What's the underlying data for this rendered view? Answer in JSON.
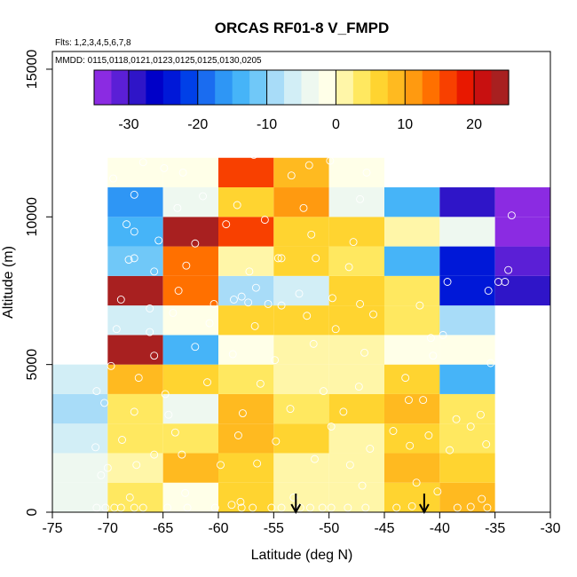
{
  "chart_data": {
    "type": "heatmap",
    "title": "ORCAS RF01-8 V_FMPD",
    "flights_text": "Flts: 1,2,3,4,5,6,7,8",
    "dates_text": "MMDD: 0115,0118,0121,0123,0125,0125,0130,0205",
    "xlabel": "Latitude (deg N)",
    "ylabel": "Altitude (m)",
    "xlim": [
      -75,
      -30
    ],
    "ylim": [
      0,
      16000
    ],
    "x_ticks": [
      -75,
      -70,
      -65,
      -60,
      -55,
      -50,
      -45,
      -40,
      -35,
      -30
    ],
    "x_tick_labels": [
      "-75",
      "-70",
      "-65",
      "-60",
      "-55",
      "-50",
      "-45",
      "-40",
      "-35",
      "-30"
    ],
    "y_ticks": [
      0,
      5000,
      10000,
      15000
    ],
    "y_tick_labels": [
      "0",
      "5000",
      "10000",
      "15000"
    ],
    "colorbar": {
      "range": [
        -35,
        25
      ],
      "tick_values": [
        -30,
        -20,
        -10,
        0,
        10,
        20
      ],
      "tick_labels": [
        "-30",
        "-20",
        "-10",
        "0",
        "10",
        "20"
      ],
      "colors": [
        "#8B2BE2",
        "#5B1FD6",
        "#2F15C8",
        "#0000C8",
        "#0018D8",
        "#0040E8",
        "#1A6CF0",
        "#2E96F5",
        "#46B4F8",
        "#70C8F8",
        "#A8DCF8",
        "#D2EEF6",
        "#EEF8F0",
        "#FFFFE8",
        "#FFF6A8",
        "#FFE860",
        "#FFD430",
        "#FFBA20",
        "#FF9A10",
        "#FF7000",
        "#F84000",
        "#E81800",
        "#C81010",
        "#A82020"
      ]
    },
    "bin_width_deg": 5,
    "bin_height_m": 1000,
    "cells": [
      {
        "lat": -75,
        "alt": 0,
        "value": -4
      },
      {
        "lat": -75,
        "alt": 1000,
        "value": -5
      },
      {
        "lat": -75,
        "alt": 2000,
        "value": -7
      },
      {
        "lat": -75,
        "alt": 3000,
        "value": -8
      },
      {
        "lat": -75,
        "alt": 4000,
        "value": -6
      },
      {
        "lat": -70,
        "alt": 0,
        "value": 3
      },
      {
        "lat": -70,
        "alt": 1000,
        "value": 2
      },
      {
        "lat": -70,
        "alt": 2000,
        "value": 4
      },
      {
        "lat": -70,
        "alt": 3000,
        "value": 3
      },
      {
        "lat": -70,
        "alt": 4000,
        "value": 9
      },
      {
        "lat": -70,
        "alt": 5000,
        "value": 23
      },
      {
        "lat": -70,
        "alt": 6000,
        "value": -6
      },
      {
        "lat": -70,
        "alt": 7000,
        "value": 26
      },
      {
        "lat": -70,
        "alt": 8000,
        "value": -12
      },
      {
        "lat": -70,
        "alt": 9000,
        "value": -13
      },
      {
        "lat": -70,
        "alt": 10000,
        "value": -16
      },
      {
        "lat": -70,
        "alt": 11000,
        "value": -1
      },
      {
        "lat": -65,
        "alt": 0,
        "value": -1
      },
      {
        "lat": -65,
        "alt": 1000,
        "value": 9
      },
      {
        "lat": -65,
        "alt": 2000,
        "value": 4
      },
      {
        "lat": -65,
        "alt": 3000,
        "value": -5
      },
      {
        "lat": -65,
        "alt": 4000,
        "value": 5
      },
      {
        "lat": -65,
        "alt": 5000,
        "value": -15
      },
      {
        "lat": -65,
        "alt": 6000,
        "value": -1
      },
      {
        "lat": -65,
        "alt": 7000,
        "value": 13
      },
      {
        "lat": -65,
        "alt": 8000,
        "value": 14
      },
      {
        "lat": -65,
        "alt": 9000,
        "value": 24
      },
      {
        "lat": -65,
        "alt": 10000,
        "value": -4
      },
      {
        "lat": -65,
        "alt": 11000,
        "value": -1
      },
      {
        "lat": -60,
        "alt": 0,
        "value": 5
      },
      {
        "lat": -60,
        "alt": 1000,
        "value": 7
      },
      {
        "lat": -60,
        "alt": 2000,
        "value": 9
      },
      {
        "lat": -60,
        "alt": 3000,
        "value": 9
      },
      {
        "lat": -60,
        "alt": 4000,
        "value": 3
      },
      {
        "lat": -60,
        "alt": 5000,
        "value": -1
      },
      {
        "lat": -60,
        "alt": 6000,
        "value": 6
      },
      {
        "lat": -60,
        "alt": 7000,
        "value": -10
      },
      {
        "lat": -60,
        "alt": 8000,
        "value": 2
      },
      {
        "lat": -60,
        "alt": 9000,
        "value": 17
      },
      {
        "lat": -60,
        "alt": 10000,
        "value": 6
      },
      {
        "lat": -60,
        "alt": 11000,
        "value": 17
      },
      {
        "lat": -55,
        "alt": 0,
        "value": 2
      },
      {
        "lat": -55,
        "alt": 1000,
        "value": 2
      },
      {
        "lat": -55,
        "alt": 2000,
        "value": 6
      },
      {
        "lat": -55,
        "alt": 3000,
        "value": 4
      },
      {
        "lat": -55,
        "alt": 4000,
        "value": 1
      },
      {
        "lat": -55,
        "alt": 5000,
        "value": 2
      },
      {
        "lat": -55,
        "alt": 6000,
        "value": 6
      },
      {
        "lat": -55,
        "alt": 7000,
        "value": -7
      },
      {
        "lat": -55,
        "alt": 8000,
        "value": 5
      },
      {
        "lat": -55,
        "alt": 9000,
        "value": 7
      },
      {
        "lat": -55,
        "alt": 10000,
        "value": 11
      },
      {
        "lat": -55,
        "alt": 11000,
        "value": 8
      },
      {
        "lat": -50,
        "alt": 0,
        "value": 1
      },
      {
        "lat": -50,
        "alt": 1000,
        "value": 2
      },
      {
        "lat": -50,
        "alt": 2000,
        "value": 1
      },
      {
        "lat": -50,
        "alt": 3000,
        "value": 7
      },
      {
        "lat": -50,
        "alt": 4000,
        "value": 1
      },
      {
        "lat": -50,
        "alt": 5000,
        "value": 1
      },
      {
        "lat": -50,
        "alt": 6000,
        "value": 5
      },
      {
        "lat": -50,
        "alt": 7000,
        "value": 7
      },
      {
        "lat": -50,
        "alt": 8000,
        "value": 4
      },
      {
        "lat": -50,
        "alt": 9000,
        "value": 7
      },
      {
        "lat": -50,
        "alt": 10000,
        "value": -5
      },
      {
        "lat": -50,
        "alt": 11000,
        "value": -1
      },
      {
        "lat": -45,
        "alt": 0,
        "value": 7
      },
      {
        "lat": -45,
        "alt": 1000,
        "value": 8
      },
      {
        "lat": -45,
        "alt": 2000,
        "value": 7
      },
      {
        "lat": -45,
        "alt": 3000,
        "value": 8
      },
      {
        "lat": -45,
        "alt": 4000,
        "value": 7
      },
      {
        "lat": -45,
        "alt": 5000,
        "value": -1
      },
      {
        "lat": -45,
        "alt": 6000,
        "value": 4
      },
      {
        "lat": -45,
        "alt": 7000,
        "value": 3
      },
      {
        "lat": -45,
        "alt": 8000,
        "value": -13
      },
      {
        "lat": -45,
        "alt": 9000,
        "value": 2
      },
      {
        "lat": -45,
        "alt": 10000,
        "value": -15
      },
      {
        "lat": -40,
        "alt": 0,
        "value": 9
      },
      {
        "lat": -40,
        "alt": 1000,
        "value": 6
      },
      {
        "lat": -40,
        "alt": 2000,
        "value": 3
      },
      {
        "lat": -40,
        "alt": 3000,
        "value": 4
      },
      {
        "lat": -40,
        "alt": 4000,
        "value": -13
      },
      {
        "lat": -40,
        "alt": 5000,
        "value": -2
      },
      {
        "lat": -40,
        "alt": 6000,
        "value": -8
      },
      {
        "lat": -40,
        "alt": 7000,
        "value": -24
      },
      {
        "lat": -40,
        "alt": 8000,
        "value": -24
      },
      {
        "lat": -40,
        "alt": 9000,
        "value": -3
      },
      {
        "lat": -40,
        "alt": 10000,
        "value": -30
      },
      {
        "lat": -35,
        "alt": 7000,
        "value": -30
      },
      {
        "lat": -35,
        "alt": 8000,
        "value": -31
      },
      {
        "lat": -35,
        "alt": 9000,
        "value": -33
      },
      {
        "lat": -35,
        "alt": 10000,
        "value": -34
      }
    ],
    "observation_points": [
      [
        -71,
        150
      ],
      [
        -70.2,
        150
      ],
      [
        -69.4,
        150
      ],
      [
        -68.8,
        150
      ],
      [
        -67.6,
        150
      ],
      [
        -66.8,
        150
      ],
      [
        -64.6,
        150
      ],
      [
        -62.8,
        150
      ],
      [
        -60.3,
        150
      ],
      [
        -58.8,
        250
      ],
      [
        -57.9,
        150
      ],
      [
        -56.9,
        150
      ],
      [
        -55.2,
        150
      ],
      [
        -54.3,
        150
      ],
      [
        -52.6,
        150
      ],
      [
        -51.7,
        150
      ],
      [
        -50.6,
        150
      ],
      [
        -49.8,
        150
      ],
      [
        -48.3,
        150
      ],
      [
        -46.7,
        150
      ],
      [
        -43.9,
        150
      ],
      [
        -42.5,
        200
      ],
      [
        -38.4,
        150
      ],
      [
        -37.2,
        180
      ],
      [
        -35.7,
        150
      ],
      [
        -68,
        500
      ],
      [
        -63,
        650
      ],
      [
        -58,
        350
      ],
      [
        -53.2,
        500
      ],
      [
        -47,
        900
      ],
      [
        -42.1,
        1000
      ],
      [
        -36.2,
        450
      ],
      [
        -40.2,
        700
      ],
      [
        -70.6,
        1250
      ],
      [
        -70.0,
        1500
      ],
      [
        -67.4,
        1600
      ],
      [
        -65.8,
        1950
      ],
      [
        -63.3,
        1950
      ],
      [
        -59.8,
        1600
      ],
      [
        -56.5,
        1650
      ],
      [
        -51.3,
        1800
      ],
      [
        -48.1,
        1600
      ],
      [
        -46.3,
        2150
      ],
      [
        -42.7,
        2250
      ],
      [
        -39.1,
        2100
      ],
      [
        -35.8,
        2300
      ],
      [
        -71.1,
        2200
      ],
      [
        -68.7,
        2450
      ],
      [
        -63.9,
        2700
      ],
      [
        -58.2,
        2600
      ],
      [
        -54.8,
        2400
      ],
      [
        -49.8,
        2900
      ],
      [
        -44.2,
        2750
      ],
      [
        -41.0,
        2600
      ],
      [
        -37.2,
        2900
      ],
      [
        -70.3,
        3700
      ],
      [
        -67.6,
        3400
      ],
      [
        -64.5,
        3300
      ],
      [
        -57.8,
        3350
      ],
      [
        -53.5,
        3500
      ],
      [
        -48.7,
        3400
      ],
      [
        -42.8,
        3800
      ],
      [
        -38.5,
        3150
      ],
      [
        -36.3,
        3300
      ],
      [
        -33.8,
        3500
      ],
      [
        -71.0,
        4100
      ],
      [
        -67.2,
        4550
      ],
      [
        -64.8,
        4000
      ],
      [
        -61.0,
        4400
      ],
      [
        -56.2,
        4350
      ],
      [
        -50.5,
        4100
      ],
      [
        -47.3,
        4250
      ],
      [
        -41.5,
        3800
      ],
      [
        -43.1,
        4550
      ],
      [
        -69.7,
        4950
      ],
      [
        -65.8,
        5300
      ],
      [
        -62.1,
        5600
      ],
      [
        -58.7,
        5350
      ],
      [
        -54.9,
        5150
      ],
      [
        -51.4,
        5700
      ],
      [
        -46.8,
        5400
      ],
      [
        -39.7,
        6000
      ],
      [
        -40.6,
        5300
      ],
      [
        -35.4,
        5050
      ],
      [
        -33.7,
        5050
      ],
      [
        -69.2,
        6200
      ],
      [
        -66.2,
        6100
      ],
      [
        -64.1,
        6750
      ],
      [
        -60.8,
        6400
      ],
      [
        -56.7,
        6300
      ],
      [
        -52.0,
        6650
      ],
      [
        -49.4,
        6200
      ],
      [
        -46.0,
        6700
      ],
      [
        -40.8,
        5900
      ],
      [
        -68.8,
        7200
      ],
      [
        -66.2,
        6900
      ],
      [
        -63.6,
        7500
      ],
      [
        -60.4,
        7050
      ],
      [
        -58.6,
        7200
      ],
      [
        -57.9,
        7300
      ],
      [
        -57.3,
        7100
      ],
      [
        -56.6,
        7600
      ],
      [
        -55.5,
        7050
      ],
      [
        -54.3,
        7000
      ],
      [
        -52.7,
        7400
      ],
      [
        -49.7,
        7250
      ],
      [
        -47.2,
        7050
      ],
      [
        -41.8,
        7000
      ],
      [
        -39.3,
        7800
      ],
      [
        -35.6,
        7500
      ],
      [
        -34.7,
        7800
      ],
      [
        -34.1,
        7800
      ],
      [
        -68.1,
        8550
      ],
      [
        -67.6,
        8600
      ],
      [
        -65.8,
        8150
      ],
      [
        -62.9,
        8350
      ],
      [
        -57.2,
        8150
      ],
      [
        -54.6,
        8600
      ],
      [
        -54.3,
        8600
      ],
      [
        -51.2,
        8600
      ],
      [
        -48.2,
        8300
      ],
      [
        -33.8,
        8200
      ],
      [
        -68.3,
        9750
      ],
      [
        -67.6,
        9500
      ],
      [
        -65.4,
        9200
      ],
      [
        -62.1,
        9100
      ],
      [
        -59.3,
        9750
      ],
      [
        -55.8,
        9900
      ],
      [
        -51.6,
        9400
      ],
      [
        -47.8,
        9150
      ],
      [
        -67.6,
        10750
      ],
      [
        -63.7,
        10300
      ],
      [
        -61.4,
        10700
      ],
      [
        -58.3,
        10400
      ],
      [
        -52.3,
        10300
      ],
      [
        -47.2,
        10600
      ],
      [
        -33.5,
        10050
      ],
      [
        -69.5,
        11300
      ],
      [
        -66.8,
        11850
      ],
      [
        -64.9,
        11650
      ],
      [
        -63.2,
        11500
      ],
      [
        -56.8,
        12100
      ],
      [
        -53.4,
        11400
      ],
      [
        -51.8,
        11750
      ],
      [
        -49.9,
        11900
      ],
      [
        -46.6,
        11500
      ]
    ],
    "arrows": [
      {
        "lat": -53.0,
        "label": "arrow-1"
      },
      {
        "lat": -41.4,
        "label": "arrow-2"
      }
    ]
  }
}
